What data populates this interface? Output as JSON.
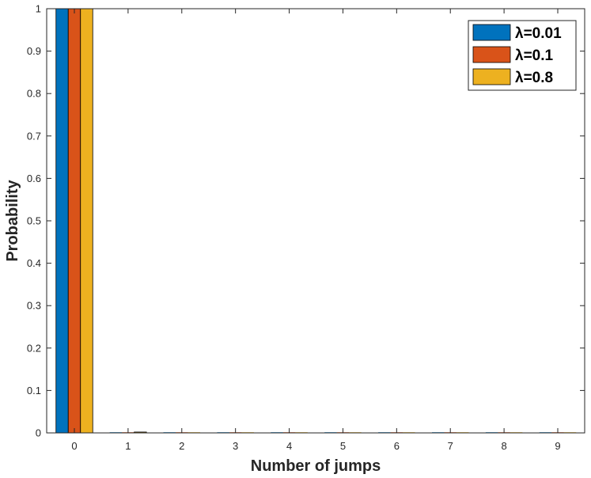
{
  "chart_data": {
    "type": "bar",
    "title": "",
    "xlabel": "Number of jumps",
    "ylabel": "Probability",
    "categories": [
      "0",
      "1",
      "2",
      "3",
      "4",
      "5",
      "6",
      "7",
      "8",
      "9"
    ],
    "ylim": [
      0,
      1
    ],
    "yticks": [
      "0",
      "0.1",
      "0.2",
      "0.3",
      "0.4",
      "0.5",
      "0.6",
      "0.7",
      "0.8",
      "0.9",
      "1"
    ],
    "grid": false,
    "legend_position": "top-right",
    "series": [
      {
        "name": "λ=0.01",
        "color": "#0072BD",
        "values": [
          1.0,
          0,
          0,
          0,
          0,
          0,
          0,
          0,
          0,
          0
        ]
      },
      {
        "name": "λ=0.1",
        "color": "#D95319",
        "values": [
          1.0,
          0,
          0,
          0,
          0,
          0,
          0,
          0,
          0,
          0
        ]
      },
      {
        "name": "λ=0.8",
        "color": "#EDB120",
        "values": [
          1.0,
          0.002,
          0,
          0,
          0,
          0,
          0,
          0,
          0,
          0
        ]
      }
    ]
  }
}
